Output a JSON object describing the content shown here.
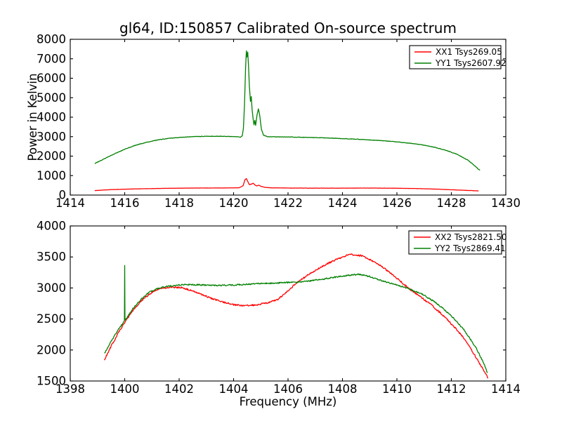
{
  "figure": {
    "background": "#ffffff",
    "title": "gl64, ID:150857 Calibrated On-source spectrum"
  },
  "chart_data": [
    {
      "type": "line",
      "title": "gl64, ID:150857 Calibrated On-source spectrum",
      "xlabel": "",
      "ylabel": "Power in Kelvin",
      "xlim": [
        1414,
        1430
      ],
      "ylim": [
        0,
        8000
      ],
      "xticks": [
        1414,
        1416,
        1418,
        1420,
        1422,
        1424,
        1426,
        1428,
        1430
      ],
      "yticks": [
        0,
        1000,
        2000,
        3000,
        4000,
        5000,
        6000,
        7000,
        8000
      ],
      "grid": false,
      "legend": {
        "position": "upper right",
        "entries": [
          {
            "label": "XX1 Tsys269.05",
            "color": "#ff0000"
          },
          {
            "label": "YY1 Tsys2607.92",
            "color": "#008000"
          }
        ]
      },
      "series": [
        {
          "name": "XX1",
          "color": "#ff0000",
          "noise": 5,
          "points": [
            [
              1414.9,
              230
            ],
            [
              1415.5,
              280
            ],
            [
              1416.5,
              320
            ],
            [
              1417.5,
              345
            ],
            [
              1418.5,
              360
            ],
            [
              1419.5,
              365
            ],
            [
              1420.2,
              372
            ],
            [
              1420.35,
              480
            ],
            [
              1420.42,
              790
            ],
            [
              1420.47,
              845
            ],
            [
              1420.52,
              700
            ],
            [
              1420.58,
              530
            ],
            [
              1420.65,
              560
            ],
            [
              1420.72,
              610
            ],
            [
              1420.78,
              520
            ],
            [
              1420.85,
              465
            ],
            [
              1420.92,
              510
            ],
            [
              1421.0,
              450
            ],
            [
              1421.15,
              395
            ],
            [
              1421.4,
              372
            ],
            [
              1422.0,
              362
            ],
            [
              1423.0,
              355
            ],
            [
              1424.0,
              355
            ],
            [
              1425.0,
              360
            ],
            [
              1426.0,
              350
            ],
            [
              1426.8,
              332
            ],
            [
              1427.5,
              302
            ],
            [
              1428.2,
              262
            ],
            [
              1429.0,
              215
            ]
          ]
        },
        {
          "name": "YY1",
          "color": "#008000",
          "noise": 12,
          "points": [
            [
              1414.9,
              1620
            ],
            [
              1415.2,
              1830
            ],
            [
              1415.6,
              2100
            ],
            [
              1416.0,
              2350
            ],
            [
              1416.4,
              2560
            ],
            [
              1416.8,
              2710
            ],
            [
              1417.2,
              2830
            ],
            [
              1417.6,
              2910
            ],
            [
              1418.0,
              2960
            ],
            [
              1418.5,
              3000
            ],
            [
              1419.0,
              3020
            ],
            [
              1419.5,
              3020
            ],
            [
              1420.0,
              3000
            ],
            [
              1420.25,
              2975
            ],
            [
              1420.32,
              3050
            ],
            [
              1420.36,
              3400
            ],
            [
              1420.4,
              4600
            ],
            [
              1420.44,
              6500
            ],
            [
              1420.47,
              7400
            ],
            [
              1420.49,
              7100
            ],
            [
              1420.52,
              7350
            ],
            [
              1420.55,
              6600
            ],
            [
              1420.58,
              5600
            ],
            [
              1420.62,
              4800
            ],
            [
              1420.65,
              5050
            ],
            [
              1420.68,
              4400
            ],
            [
              1420.72,
              3900
            ],
            [
              1420.75,
              3620
            ],
            [
              1420.78,
              3830
            ],
            [
              1420.81,
              3570
            ],
            [
              1420.86,
              4100
            ],
            [
              1420.91,
              4430
            ],
            [
              1420.96,
              4100
            ],
            [
              1421.02,
              3400
            ],
            [
              1421.1,
              3080
            ],
            [
              1421.25,
              3000
            ],
            [
              1421.5,
              2990
            ],
            [
              1422.0,
              2980
            ],
            [
              1422.5,
              2970
            ],
            [
              1423.0,
              2950
            ],
            [
              1423.5,
              2930
            ],
            [
              1424.0,
              2900
            ],
            [
              1424.5,
              2870
            ],
            [
              1425.0,
              2830
            ],
            [
              1425.5,
              2790
            ],
            [
              1426.0,
              2730
            ],
            [
              1426.5,
              2660
            ],
            [
              1427.0,
              2560
            ],
            [
              1427.4,
              2450
            ],
            [
              1427.8,
              2300
            ],
            [
              1428.2,
              2100
            ],
            [
              1428.6,
              1800
            ],
            [
              1428.9,
              1450
            ],
            [
              1429.05,
              1270
            ]
          ]
        }
      ]
    },
    {
      "type": "line",
      "title": "",
      "xlabel": "Frequency (MHz)",
      "ylabel": "",
      "xlim": [
        1398,
        1414
      ],
      "ylim": [
        1500,
        4000
      ],
      "xticks": [
        1398,
        1400,
        1402,
        1404,
        1406,
        1408,
        1410,
        1412,
        1414
      ],
      "yticks": [
        1500,
        2000,
        2500,
        3000,
        3500,
        4000
      ],
      "grid": false,
      "legend": {
        "position": "upper right",
        "entries": [
          {
            "label": "XX2 Tsys2821.50",
            "color": "#ff0000"
          },
          {
            "label": "YY2 Tsys2869.41",
            "color": "#008000"
          }
        ]
      },
      "series": [
        {
          "name": "XX2",
          "color": "#ff0000",
          "noise": 13,
          "points": [
            [
              1399.25,
              1840
            ],
            [
              1399.5,
              2060
            ],
            [
              1399.8,
              2300
            ],
            [
              1400.1,
              2510
            ],
            [
              1400.4,
              2690
            ],
            [
              1400.7,
              2830
            ],
            [
              1401.0,
              2930
            ],
            [
              1401.3,
              2985
            ],
            [
              1401.7,
              3015
            ],
            [
              1402.1,
              3005
            ],
            [
              1402.5,
              2950
            ],
            [
              1403.0,
              2865
            ],
            [
              1403.5,
              2785
            ],
            [
              1404.0,
              2730
            ],
            [
              1404.4,
              2715
            ],
            [
              1404.8,
              2725
            ],
            [
              1405.2,
              2755
            ],
            [
              1405.6,
              2810
            ],
            [
              1406.0,
              2950
            ],
            [
              1406.3,
              3080
            ],
            [
              1406.7,
              3200
            ],
            [
              1407.1,
              3310
            ],
            [
              1407.6,
              3425
            ],
            [
              1408.0,
              3500
            ],
            [
              1408.3,
              3540
            ],
            [
              1408.7,
              3520
            ],
            [
              1409.1,
              3440
            ],
            [
              1409.5,
              3330
            ],
            [
              1410.0,
              3155
            ],
            [
              1410.46,
              2985
            ],
            [
              1410.9,
              2845
            ],
            [
              1411.3,
              2715
            ],
            [
              1411.7,
              2555
            ],
            [
              1412.1,
              2375
            ],
            [
              1412.5,
              2170
            ],
            [
              1412.9,
              1885
            ],
            [
              1413.2,
              1665
            ],
            [
              1413.35,
              1545
            ]
          ]
        },
        {
          "name": "YY2",
          "color": "#008000",
          "noise": 11,
          "points": [
            [
              1399.25,
              1940
            ],
            [
              1399.5,
              2140
            ],
            [
              1399.8,
              2350
            ],
            [
              1399.99,
              2465
            ],
            [
              1400.0,
              3370
            ],
            [
              1400.01,
              2475
            ],
            [
              1400.3,
              2665
            ],
            [
              1400.6,
              2815
            ],
            [
              1400.9,
              2930
            ],
            [
              1401.2,
              2990
            ],
            [
              1401.5,
              3020
            ],
            [
              1401.9,
              3045
            ],
            [
              1402.3,
              3055
            ],
            [
              1402.8,
              3050
            ],
            [
              1403.3,
              3040
            ],
            [
              1403.8,
              3045
            ],
            [
              1404.3,
              3055
            ],
            [
              1404.8,
              3065
            ],
            [
              1405.3,
              3075
            ],
            [
              1405.8,
              3085
            ],
            [
              1406.3,
              3095
            ],
            [
              1406.8,
              3115
            ],
            [
              1407.3,
              3145
            ],
            [
              1407.8,
              3180
            ],
            [
              1408.2,
              3205
            ],
            [
              1408.6,
              3220
            ],
            [
              1409.0,
              3185
            ],
            [
              1409.5,
              3110
            ],
            [
              1410.0,
              3050
            ],
            [
              1410.46,
              2985
            ],
            [
              1410.9,
              2905
            ],
            [
              1411.3,
              2800
            ],
            [
              1411.7,
              2670
            ],
            [
              1412.1,
              2505
            ],
            [
              1412.5,
              2305
            ],
            [
              1412.9,
              2040
            ],
            [
              1413.2,
              1780
            ],
            [
              1413.32,
              1630
            ]
          ]
        }
      ]
    }
  ]
}
